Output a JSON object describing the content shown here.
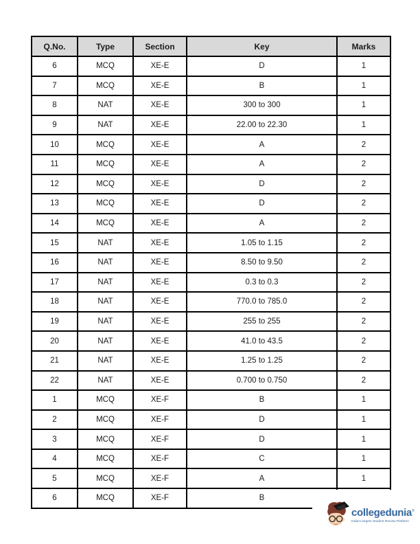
{
  "table": {
    "columns": [
      "Q.No.",
      "Type",
      "Section",
      "Key",
      "Marks"
    ],
    "rows": [
      [
        "6",
        "MCQ",
        "XE-E",
        "D",
        "1"
      ],
      [
        "7",
        "MCQ",
        "XE-E",
        "B",
        "1"
      ],
      [
        "8",
        "NAT",
        "XE-E",
        "300 to 300",
        "1"
      ],
      [
        "9",
        "NAT",
        "XE-E",
        "22.00 to 22.30",
        "1"
      ],
      [
        "10",
        "MCQ",
        "XE-E",
        "A",
        "2"
      ],
      [
        "11",
        "MCQ",
        "XE-E",
        "A",
        "2"
      ],
      [
        "12",
        "MCQ",
        "XE-E",
        "D",
        "2"
      ],
      [
        "13",
        "MCQ",
        "XE-E",
        "D",
        "2"
      ],
      [
        "14",
        "MCQ",
        "XE-E",
        "A",
        "2"
      ],
      [
        "15",
        "NAT",
        "XE-E",
        "1.05 to 1.15",
        "2"
      ],
      [
        "16",
        "NAT",
        "XE-E",
        "8.50 to 9.50",
        "2"
      ],
      [
        "17",
        "NAT",
        "XE-E",
        "0.3 to 0.3",
        "2"
      ],
      [
        "18",
        "NAT",
        "XE-E",
        "770.0 to 785.0",
        "2"
      ],
      [
        "19",
        "NAT",
        "XE-E",
        "255 to 255",
        "2"
      ],
      [
        "20",
        "NAT",
        "XE-E",
        "41.0 to 43.5",
        "2"
      ],
      [
        "21",
        "NAT",
        "XE-E",
        "1.25 to 1.25",
        "2"
      ],
      [
        "22",
        "NAT",
        "XE-E",
        "0.700 to 0.750",
        "2"
      ],
      [
        "1",
        "MCQ",
        "XE-F",
        "B",
        "1"
      ],
      [
        "2",
        "MCQ",
        "XE-F",
        "D",
        "1"
      ],
      [
        "3",
        "MCQ",
        "XE-F",
        "D",
        "1"
      ],
      [
        "4",
        "MCQ",
        "XE-F",
        "C",
        "1"
      ],
      [
        "5",
        "MCQ",
        "XE-F",
        "A",
        "1"
      ],
      [
        "6",
        "MCQ",
        "XE-F",
        "B",
        ""
      ]
    ],
    "header_bg": "#d9d9d9",
    "border_color": "#000000"
  },
  "logo": {
    "brand": "collegedunia",
    "registered_mark": "®",
    "tagline": "India's largest Student Review Platform",
    "brand_color": "#33679b",
    "mascot": "student-face-graduation-cap-glasses-icon"
  }
}
